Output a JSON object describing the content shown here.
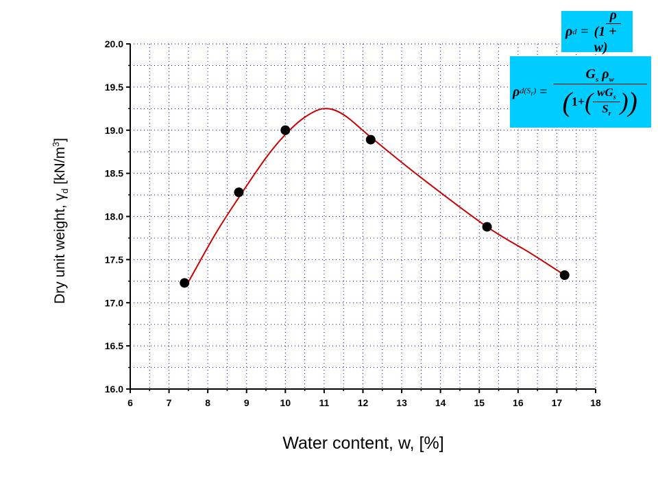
{
  "chart_data": {
    "type": "scatter",
    "xlabel": "Water content, w, [%]",
    "ylabel": {
      "main": "Dry unit weight, γ",
      "sub": "d",
      "unit_pre": " [kN/m",
      "sup": "3",
      "unit_post": "]"
    },
    "xlim": [
      6,
      18
    ],
    "ylim": [
      16.0,
      20.0
    ],
    "xticks": [
      "6",
      "7",
      "8",
      "9",
      "10",
      "11",
      "12",
      "13",
      "14",
      "15",
      "16",
      "17",
      "18"
    ],
    "yticks": [
      "16.0",
      "16.5",
      "17.0",
      "17.5",
      "18.0",
      "18.5",
      "19.0",
      "19.5",
      "20.0"
    ],
    "grid": true,
    "series": [
      {
        "kind": "points",
        "color": "#000000",
        "x": [
          7.4,
          8.8,
          10.0,
          12.2,
          15.2,
          17.2
        ],
        "y": [
          17.23,
          18.28,
          19.0,
          18.89,
          17.88,
          17.32
        ]
      },
      {
        "kind": "fit-curve",
        "color": "#cc0000",
        "x": [
          7.45,
          8.2,
          8.8,
          9.5,
          10.0,
          10.5,
          11.0,
          11.5,
          12.2,
          13.5,
          15.2,
          16.3,
          17.2
        ],
        "y": [
          17.2,
          17.8,
          18.22,
          18.68,
          18.95,
          19.15,
          19.25,
          19.18,
          18.92,
          18.45,
          17.88,
          17.58,
          17.32
        ]
      }
    ]
  },
  "formulas": {
    "f1": {
      "lhs": "ρ",
      "lhs_sub": "d",
      "eq": "=",
      "num": "ρ",
      "den": "(1 + w)"
    },
    "f2": {
      "lhs": "ρ",
      "lhs_sub": "d(S",
      "lhs_sub2": "r",
      "lhs_sub3": ")",
      "eq": "=",
      "num": "G",
      "num_sub": "s",
      "num2": "ρ",
      "num2_sub": "w",
      "den_pre": "1+",
      "inner_num": "wG",
      "inner_num_sub": "s",
      "inner_den": "S",
      "inner_den_sub": "r"
    },
    "color": "#00ccff"
  }
}
